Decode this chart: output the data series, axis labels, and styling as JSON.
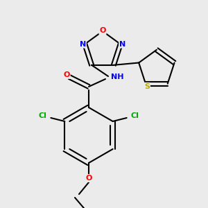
{
  "bg_color": "#ebebeb",
  "bond_color": "#000000",
  "atom_colors": {
    "O": "#ff0000",
    "N": "#0000ff",
    "S": "#bbaa00",
    "Cl": "#00aa00",
    "C": "#000000",
    "H": "#808080"
  },
  "line_width": 1.5
}
